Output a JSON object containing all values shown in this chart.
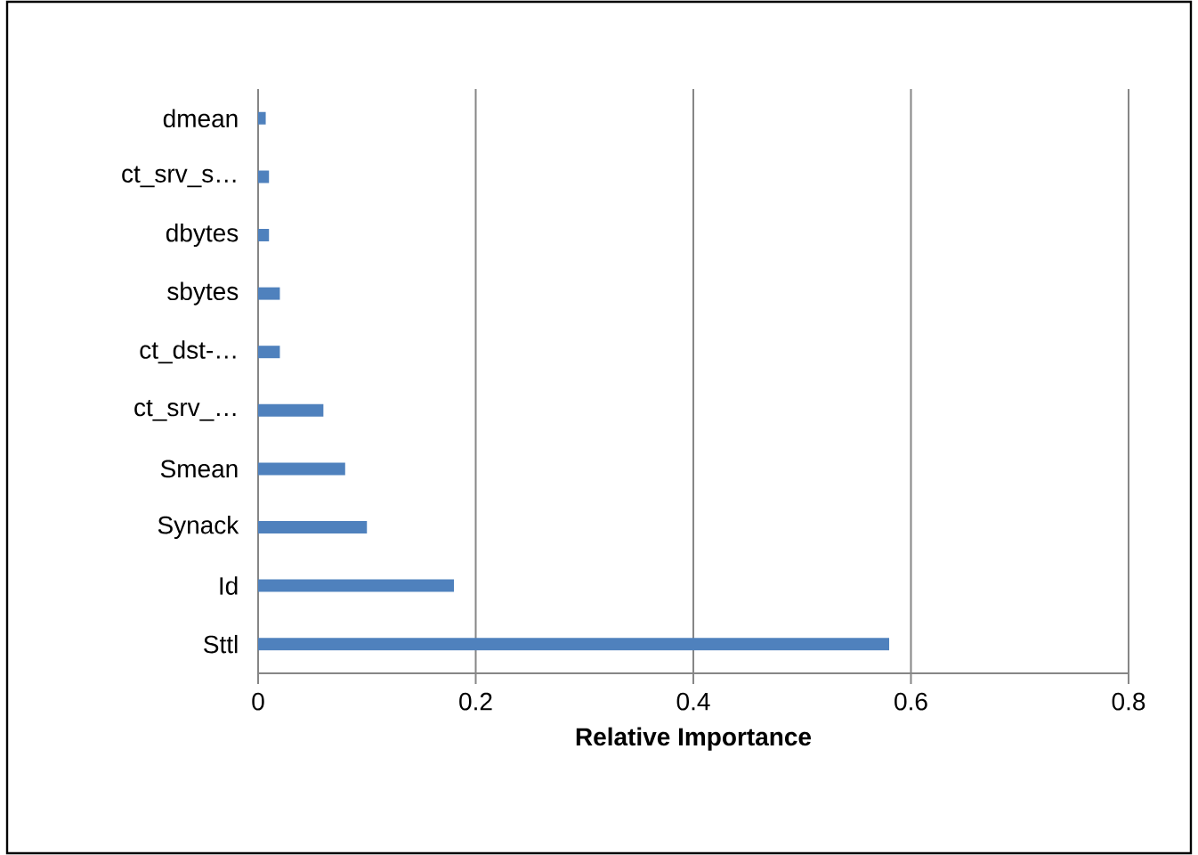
{
  "chart_data": {
    "type": "bar",
    "orientation": "horizontal",
    "xlabel": "Relative Importance",
    "categories": [
      "dmean",
      "ct_srv_s…",
      "dbytes",
      "sbytes",
      "ct_dst-…",
      "ct_srv_…",
      "Smean",
      "Synack",
      "Id",
      "Sttl"
    ],
    "values": [
      0.007,
      0.01,
      0.01,
      0.02,
      0.02,
      0.06,
      0.08,
      0.1,
      0.18,
      0.58
    ],
    "color": "#4f81bd",
    "xlim": [
      0,
      0.8
    ],
    "xticks": [
      0,
      0.2,
      0.4,
      0.6,
      0.8
    ],
    "grid": "x"
  }
}
